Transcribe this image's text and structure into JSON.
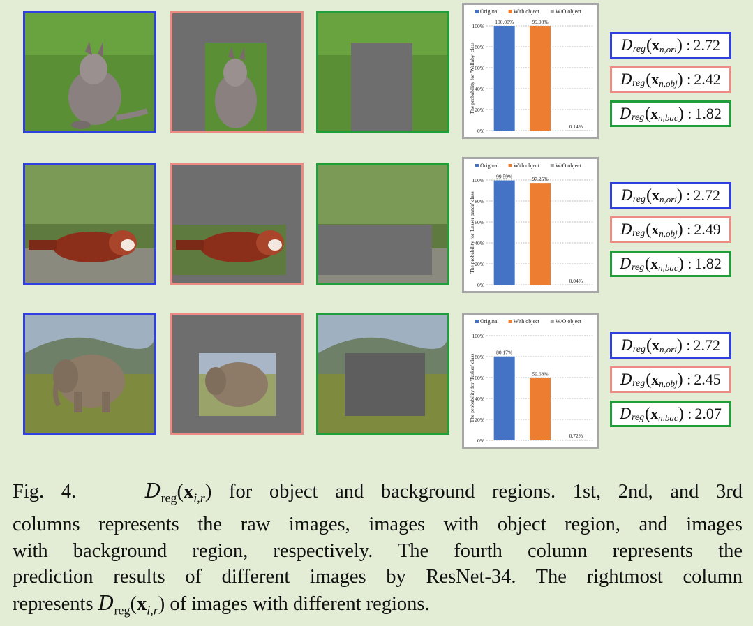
{
  "legend": {
    "original": "Original",
    "with_object": "With object",
    "without_object": "W/O object"
  },
  "rows": [
    {
      "subject": "wallaby",
      "chart_data": {
        "type": "bar",
        "categories": [
          "Original",
          "With object",
          "W/O object"
        ],
        "values": [
          100.0,
          99.98,
          0.14
        ],
        "value_labels": [
          "100.00%",
          "99.98%",
          "0.14%"
        ],
        "ylabel": "The probability for 'Wallaby' class",
        "ylim": [
          0,
          100
        ],
        "yticks": [
          "0%",
          "20%",
          "40%",
          "60%",
          "80%",
          "100%"
        ],
        "grid": true,
        "legend_position": "top"
      },
      "labels": [
        {
          "sub": "n,ori",
          "value": "2.72",
          "color": "#2f3fe0"
        },
        {
          "sub": "n,obj",
          "value": "2.42",
          "color": "#ec8b84"
        },
        {
          "sub": "n,bac",
          "value": "1.82",
          "color": "#1f9e3a"
        }
      ]
    },
    {
      "subject": "red panda",
      "chart_data": {
        "type": "bar",
        "categories": [
          "Original",
          "With object",
          "W/O object"
        ],
        "values": [
          99.59,
          97.25,
          0.04
        ],
        "value_labels": [
          "99.59%",
          "97.25%",
          "0.04%"
        ],
        "ylabel": "The probability for 'Lesser panda' class",
        "ylim": [
          0,
          100
        ],
        "yticks": [
          "0%",
          "20%",
          "40%",
          "60%",
          "80%",
          "100%"
        ],
        "grid": true,
        "legend_position": "top"
      },
      "labels": [
        {
          "sub": "n,ori",
          "value": "2.72",
          "color": "#2f3fe0"
        },
        {
          "sub": "n,obj",
          "value": "2.49",
          "color": "#ec8b84"
        },
        {
          "sub": "n,bac",
          "value": "1.82",
          "color": "#1f9e3a"
        }
      ]
    },
    {
      "subject": "elephant",
      "chart_data": {
        "type": "bar",
        "categories": [
          "Original",
          "With object",
          "W/O object"
        ],
        "values": [
          80.17,
          59.68,
          0.72
        ],
        "value_labels": [
          "80.17%",
          "59.68%",
          "0.72%"
        ],
        "ylabel": "The probability for 'Tusker' class",
        "ylim": [
          0,
          100
        ],
        "yticks": [
          "0%",
          "20%",
          "40%",
          "60%",
          "80%",
          "100%"
        ],
        "grid": true,
        "legend_position": "top"
      },
      "labels": [
        {
          "sub": "n,ori",
          "value": "2.72",
          "color": "#2f3fe0"
        },
        {
          "sub": "n,obj",
          "value": "2.45",
          "color": "#ec8b84"
        },
        {
          "sub": "n,bac",
          "value": "2.07",
          "color": "#1f9e3a"
        }
      ]
    }
  ],
  "series_colors": {
    "original": "#4472c4",
    "with_object": "#ed7d31",
    "without_object": "#a5a5a5"
  },
  "caption": {
    "fig": "Fig. 4.",
    "math_D": "D",
    "math_sub": "reg",
    "math_x": "x",
    "math_idx": "i,r",
    "line1_rest": "for object and background regions. 1st, 2nd, and 3rd",
    "line2": "columns represents the raw images, images with object region, and images",
    "line3": "with background region, respectively. The fourth column represents the",
    "line4": "prediction results of different images by ResNet-34. The rightmost column",
    "line5_pre": "represents",
    "line5_post": "of images with different regions."
  },
  "label_common": {
    "D": "D",
    "reg": "reg",
    "x": "x",
    "colon": ":"
  }
}
